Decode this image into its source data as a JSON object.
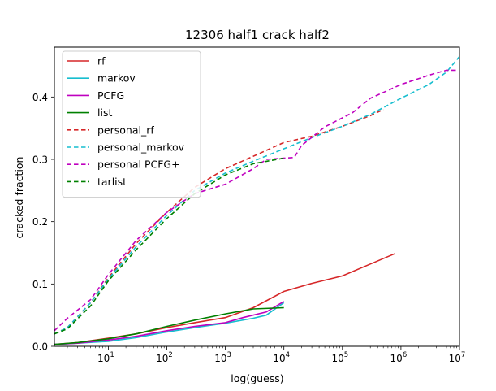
{
  "chart_data": {
    "type": "line",
    "title": "12306 half1 crack half2",
    "xlabel": "log(guess)",
    "ylabel": "cracked fraction",
    "xscale": "log",
    "xlim": [
      1.2,
      10000000
    ],
    "ylim": [
      0,
      0.48
    ],
    "x_ticks": [
      {
        "value": 10,
        "base": "10",
        "exp": "1"
      },
      {
        "value": 100,
        "base": "10",
        "exp": "2"
      },
      {
        "value": 1000,
        "base": "10",
        "exp": "3"
      },
      {
        "value": 10000,
        "base": "10",
        "exp": "4"
      },
      {
        "value": 100000,
        "base": "10",
        "exp": "5"
      },
      {
        "value": 1000000,
        "base": "10",
        "exp": "6"
      },
      {
        "value": 10000000,
        "base": "10",
        "exp": "7"
      }
    ],
    "y_ticks": [
      {
        "value": 0.0,
        "label": "0.0"
      },
      {
        "value": 0.1,
        "label": "0.1"
      },
      {
        "value": 0.2,
        "label": "0.2"
      },
      {
        "value": 0.3,
        "label": "0.3"
      },
      {
        "value": 0.4,
        "label": "0.4"
      }
    ],
    "grid": false,
    "legend_position": "top-left",
    "series": [
      {
        "name": "rf",
        "color": "#d62728",
        "dash": "solid",
        "points": [
          [
            1.2,
            0.003
          ],
          [
            3,
            0.006
          ],
          [
            10,
            0.013
          ],
          [
            30,
            0.02
          ],
          [
            100,
            0.03
          ],
          [
            300,
            0.038
          ],
          [
            1000,
            0.046
          ],
          [
            3000,
            0.062
          ],
          [
            10000,
            0.088
          ],
          [
            30000,
            0.101
          ],
          [
            100000,
            0.113
          ],
          [
            300000,
            0.132
          ],
          [
            800000,
            0.149
          ]
        ]
      },
      {
        "name": "markov",
        "color": "#17becf",
        "dash": "solid",
        "points": [
          [
            1.2,
            0.003
          ],
          [
            3,
            0.005
          ],
          [
            10,
            0.008
          ],
          [
            30,
            0.014
          ],
          [
            100,
            0.023
          ],
          [
            300,
            0.03
          ],
          [
            1000,
            0.037
          ],
          [
            3000,
            0.045
          ],
          [
            5000,
            0.05
          ],
          [
            10000,
            0.07
          ]
        ]
      },
      {
        "name": "PCFG",
        "color": "#bf00bf",
        "dash": "solid",
        "points": [
          [
            1.2,
            0.003
          ],
          [
            3,
            0.005
          ],
          [
            10,
            0.01
          ],
          [
            30,
            0.016
          ],
          [
            100,
            0.025
          ],
          [
            300,
            0.032
          ],
          [
            1000,
            0.038
          ],
          [
            2000,
            0.046
          ],
          [
            5000,
            0.055
          ],
          [
            10000,
            0.072
          ]
        ]
      },
      {
        "name": "list",
        "color": "#008000",
        "dash": "solid",
        "points": [
          [
            1.2,
            0.003
          ],
          [
            3,
            0.006
          ],
          [
            10,
            0.012
          ],
          [
            30,
            0.02
          ],
          [
            100,
            0.032
          ],
          [
            300,
            0.042
          ],
          [
            1000,
            0.052
          ],
          [
            3000,
            0.06
          ],
          [
            10000,
            0.062
          ]
        ]
      },
      {
        "name": "personal_rf",
        "color": "#d62728",
        "dash": "dashed",
        "points": [
          [
            1.2,
            0.02
          ],
          [
            2,
            0.03
          ],
          [
            5,
            0.07
          ],
          [
            10,
            0.11
          ],
          [
            30,
            0.165
          ],
          [
            100,
            0.215
          ],
          [
            300,
            0.255
          ],
          [
            1000,
            0.285
          ],
          [
            3000,
            0.305
          ],
          [
            10000,
            0.327
          ],
          [
            30000,
            0.337
          ],
          [
            100000,
            0.353
          ],
          [
            300000,
            0.37
          ],
          [
            500000,
            0.38
          ]
        ]
      },
      {
        "name": "personal_markov",
        "color": "#17becf",
        "dash": "dashed",
        "points": [
          [
            1.2,
            0.02
          ],
          [
            2,
            0.03
          ],
          [
            5,
            0.07
          ],
          [
            10,
            0.108
          ],
          [
            30,
            0.16
          ],
          [
            100,
            0.21
          ],
          [
            300,
            0.25
          ],
          [
            1000,
            0.278
          ],
          [
            3000,
            0.297
          ],
          [
            10000,
            0.317
          ],
          [
            30000,
            0.335
          ],
          [
            100000,
            0.353
          ],
          [
            300000,
            0.372
          ],
          [
            1000000,
            0.398
          ],
          [
            3000000,
            0.42
          ],
          [
            6000000,
            0.44
          ],
          [
            10000000,
            0.465
          ]
        ]
      },
      {
        "name": "personal PCFG+",
        "color": "#bf00bf",
        "dash": "dashed",
        "points": [
          [
            1.2,
            0.025
          ],
          [
            2,
            0.045
          ],
          [
            5,
            0.075
          ],
          [
            10,
            0.115
          ],
          [
            30,
            0.17
          ],
          [
            100,
            0.215
          ],
          [
            300,
            0.245
          ],
          [
            1000,
            0.26
          ],
          [
            3000,
            0.285
          ],
          [
            5000,
            0.3
          ],
          [
            15000,
            0.303
          ],
          [
            20000,
            0.322
          ],
          [
            50000,
            0.352
          ],
          [
            150000,
            0.375
          ],
          [
            300000,
            0.398
          ],
          [
            1000000,
            0.42
          ],
          [
            3000000,
            0.435
          ],
          [
            6000000,
            0.443
          ],
          [
            10000000,
            0.443
          ]
        ]
      },
      {
        "name": "tarlist",
        "color": "#008000",
        "dash": "dashed",
        "points": [
          [
            1.2,
            0.02
          ],
          [
            2,
            0.028
          ],
          [
            5,
            0.065
          ],
          [
            10,
            0.105
          ],
          [
            30,
            0.155
          ],
          [
            100,
            0.205
          ],
          [
            300,
            0.245
          ],
          [
            1000,
            0.275
          ],
          [
            3000,
            0.293
          ],
          [
            10000,
            0.302
          ]
        ]
      }
    ]
  }
}
